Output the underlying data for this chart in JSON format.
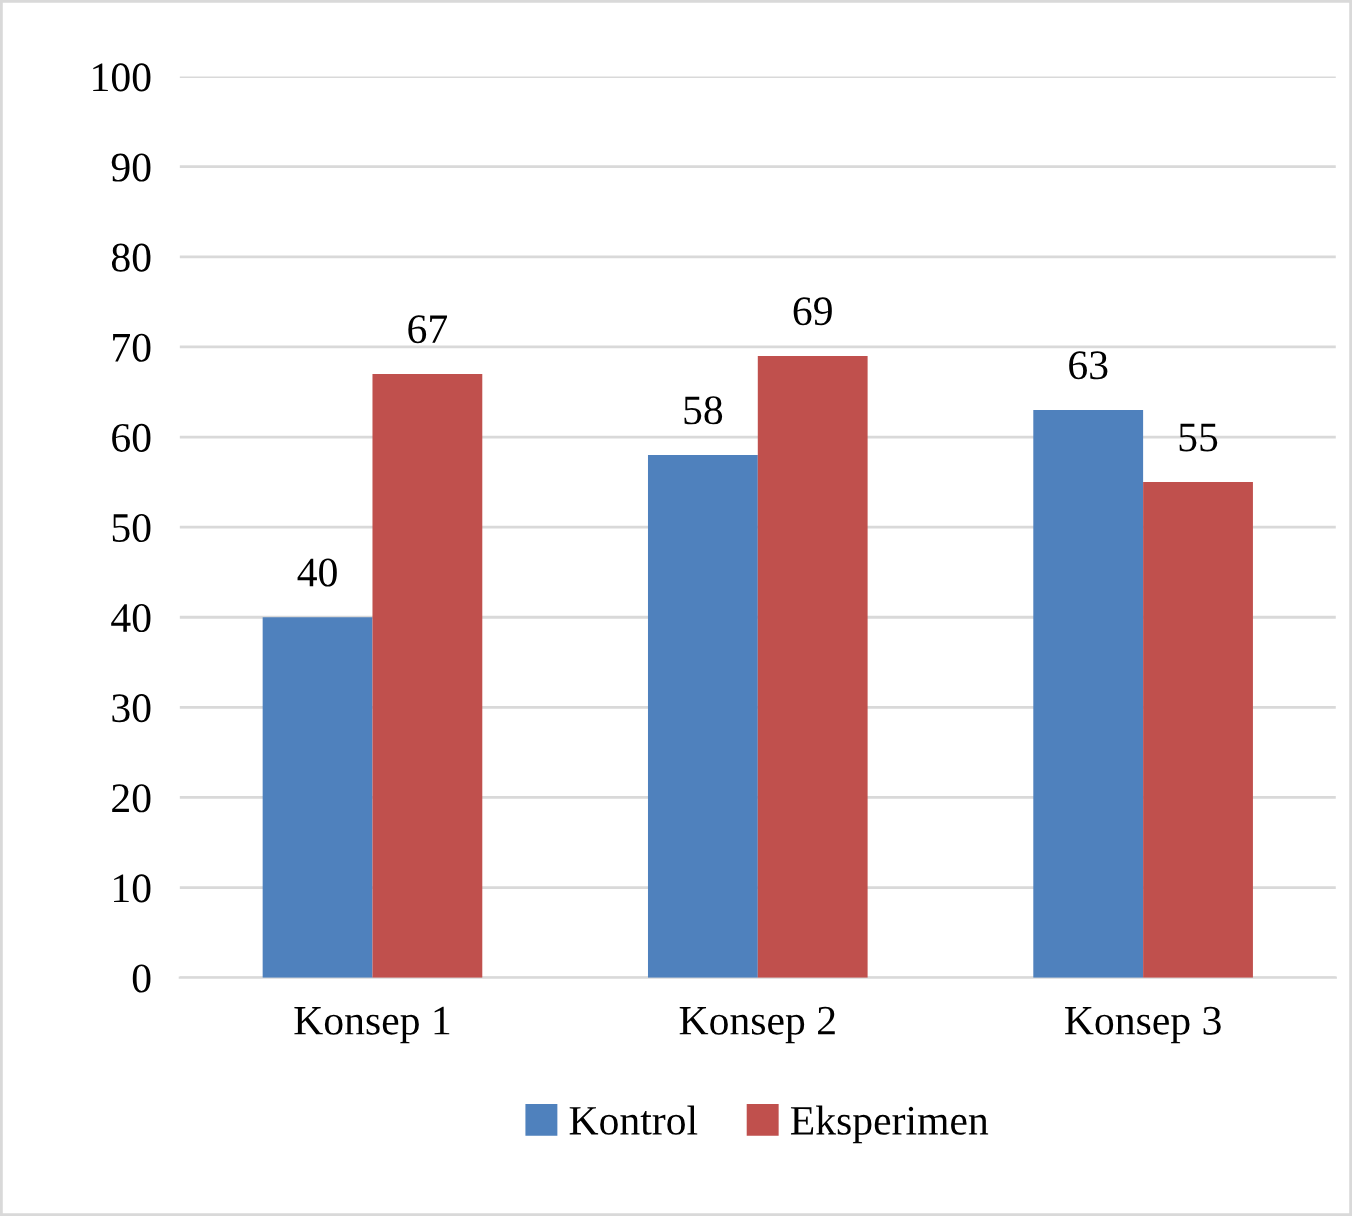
{
  "chart_data": {
    "type": "bar",
    "categories": [
      "Konsep 1",
      "Konsep 2",
      "Konsep 3"
    ],
    "series": [
      {
        "name": "Kontrol",
        "color": "#4f81bd",
        "values": [
          40,
          58,
          63
        ]
      },
      {
        "name": "Eksperimen",
        "color": "#c0504d",
        "values": [
          67,
          69,
          55
        ]
      }
    ],
    "ylim": [
      0,
      100
    ],
    "yticks": [
      0,
      10,
      20,
      30,
      40,
      50,
      60,
      70,
      80,
      90,
      100
    ],
    "grid": "y",
    "legend": "bottom",
    "data_labels": true
  }
}
